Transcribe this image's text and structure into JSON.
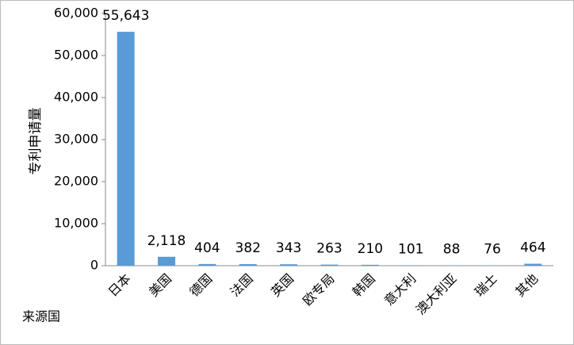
{
  "chart_data": {
    "type": "bar",
    "y_label": "专利申请量",
    "x_label": "来源国",
    "categories": [
      "日本",
      "美国",
      "德国",
      "法国",
      "英国",
      "欧专局",
      "韩国",
      "意大利",
      "澳大利亚",
      "瑞士",
      "其他"
    ],
    "values": [
      55643,
      2118,
      404,
      382,
      343,
      263,
      210,
      101,
      88,
      76,
      464
    ],
    "value_labels": [
      "55,643",
      "2,118",
      "404",
      "382",
      "343",
      "263",
      "210",
      "101",
      "88",
      "76",
      "464"
    ],
    "color": "#5b9bd5",
    "ylim": [
      0,
      60000
    ],
    "yticks": [
      0,
      {
        "value": 10000,
        "label": "10,000"
      },
      {
        "value": 20000,
        "label": "20,000"
      },
      {
        "value": 30000,
        "label": "30,000"
      },
      {
        "value": 40000,
        "label": "40,000"
      },
      {
        "value": 50000,
        "label": "50,000"
      },
      {
        "value": 60000,
        "label": "60,000"
      }
    ],
    "grid": false
  }
}
